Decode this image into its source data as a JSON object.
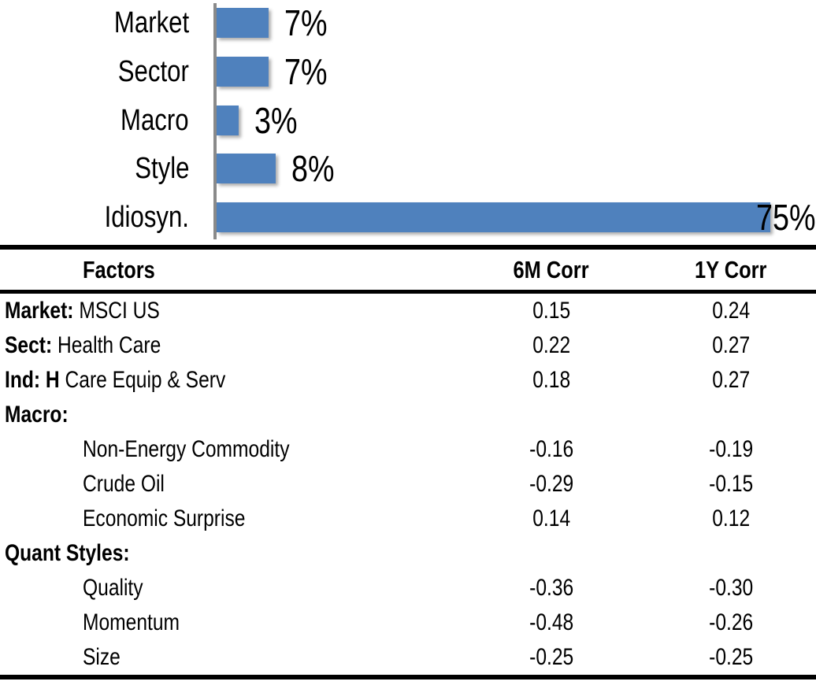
{
  "chart_data": [
    {
      "type": "bar",
      "orientation": "horizontal",
      "title": "",
      "categories": [
        "Market",
        "Sector",
        "Macro",
        "Style",
        "Idiosyn."
      ],
      "values": [
        7,
        7,
        3,
        8,
        75
      ],
      "value_labels": [
        "7%",
        "7%",
        "3%",
        "8%",
        "75%"
      ],
      "xlim": [
        0,
        80
      ],
      "grid": false,
      "legend": false,
      "bar_color": "#4F81BD",
      "axis_color": "#8A8A8A",
      "label_color": "#000000"
    },
    {
      "type": "table",
      "headers": [
        "Factors",
        "6M Corr",
        "1Y Corr"
      ],
      "rows": [
        {
          "label_bold": "Market:",
          "label_rest": " MSCI US",
          "indent": false,
          "corr_6m": "0.15",
          "corr_1y": "0.24"
        },
        {
          "label_bold": "Sect:",
          "label_rest": " Health Care",
          "indent": false,
          "corr_6m": "0.22",
          "corr_1y": "0.27"
        },
        {
          "label_bold": "Ind: H",
          "label_rest": " Care Equip & Serv",
          "indent": false,
          "corr_6m": "0.18",
          "corr_1y": "0.27"
        },
        {
          "label_bold": "Macro:",
          "label_rest": "",
          "indent": false,
          "corr_6m": "",
          "corr_1y": ""
        },
        {
          "label_bold": "",
          "label_rest": "Non-Energy Commodity",
          "indent": true,
          "corr_6m": "-0.16",
          "corr_1y": "-0.19"
        },
        {
          "label_bold": "",
          "label_rest": "Crude Oil",
          "indent": true,
          "corr_6m": "-0.29",
          "corr_1y": "-0.15"
        },
        {
          "label_bold": "",
          "label_rest": "Economic Surprise",
          "indent": true,
          "corr_6m": "0.14",
          "corr_1y": "0.12"
        },
        {
          "label_bold": "Quant Styles:",
          "label_rest": "",
          "indent": false,
          "corr_6m": "",
          "corr_1y": ""
        },
        {
          "label_bold": "",
          "label_rest": "Quality",
          "indent": true,
          "corr_6m": "-0.36",
          "corr_1y": "-0.30"
        },
        {
          "label_bold": "",
          "label_rest": "Momentum",
          "indent": true,
          "corr_6m": "-0.48",
          "corr_1y": "-0.26"
        },
        {
          "label_bold": "",
          "label_rest": "Size",
          "indent": true,
          "corr_6m": "-0.25",
          "corr_1y": "-0.25"
        }
      ]
    }
  ]
}
